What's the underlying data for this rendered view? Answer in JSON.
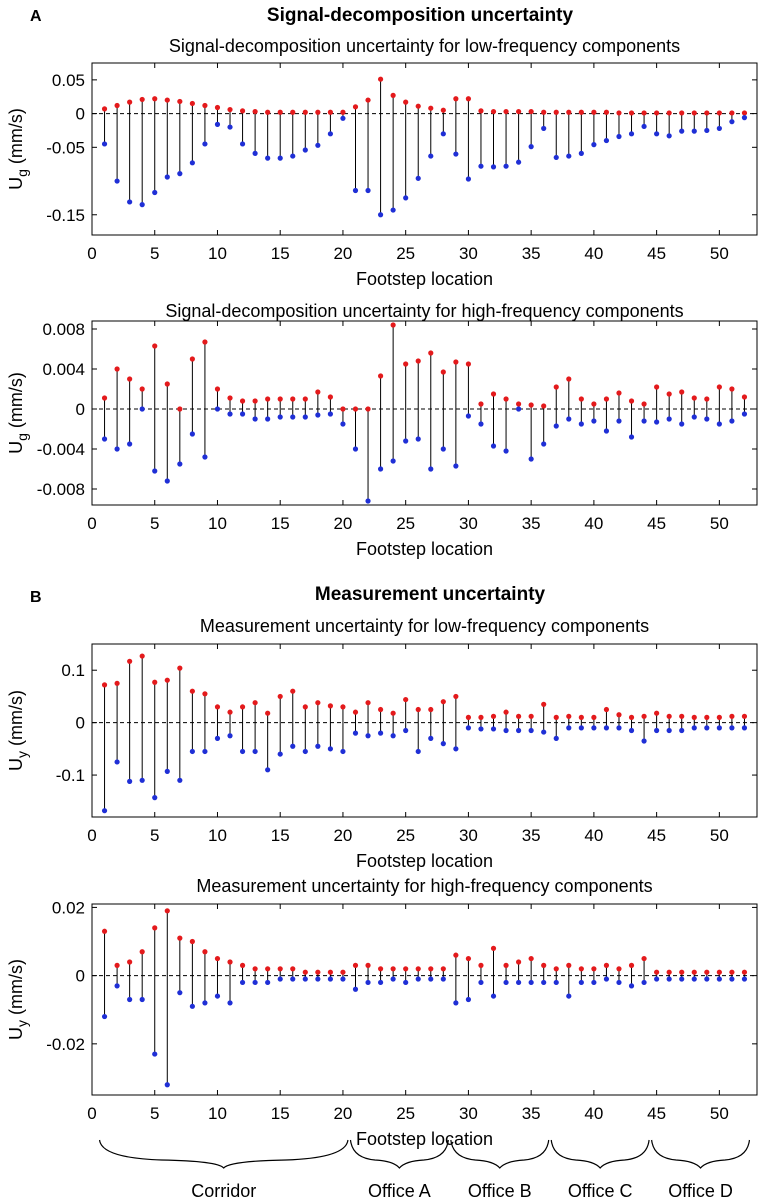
{
  "sections": {
    "A": {
      "letter": "A",
      "title": "Signal-decomposition uncertainty"
    },
    "B": {
      "letter": "B",
      "title": "Measurement uncertainty"
    }
  },
  "chart_data": [
    {
      "type": "stem",
      "title": "Signal-decomposition uncertainty for low-frequency components",
      "xlabel": "Footstep location",
      "ylabel": "U",
      "ylabel_sub": "g",
      "ylabel_unit": " (mm/s)",
      "xlim": [
        0,
        53
      ],
      "ylim": [
        -0.18,
        0.075
      ],
      "xticks": [
        0,
        5,
        10,
        15,
        20,
        25,
        30,
        35,
        40,
        45,
        50
      ],
      "yticks": [
        0.05,
        0,
        -0.05,
        -0.15
      ],
      "ytick_labels": [
        "0.05",
        "0",
        "-0.05",
        "-0.15"
      ],
      "x": [
        1,
        2,
        3,
        4,
        5,
        6,
        7,
        8,
        9,
        10,
        11,
        12,
        13,
        14,
        15,
        16,
        17,
        18,
        19,
        20,
        21,
        22,
        23,
        24,
        25,
        26,
        27,
        28,
        29,
        30,
        31,
        32,
        33,
        34,
        35,
        36,
        37,
        38,
        39,
        40,
        41,
        42,
        43,
        44,
        45,
        46,
        47,
        48,
        49,
        50,
        51,
        52
      ],
      "upper": [
        0.007,
        0.012,
        0.017,
        0.021,
        0.022,
        0.02,
        0.018,
        0.015,
        0.012,
        0.009,
        0.006,
        0.004,
        0.003,
        0.002,
        0.002,
        0.002,
        0.002,
        0.002,
        0.002,
        0.002,
        0.01,
        0.02,
        0.051,
        0.027,
        0.017,
        0.011,
        0.008,
        0.005,
        0.022,
        0.022,
        0.004,
        0.003,
        0.003,
        0.003,
        0.003,
        0.002,
        0.002,
        0.002,
        0.002,
        0.002,
        0.002,
        0.001,
        0.001,
        0.001,
        0.001,
        0.001,
        0.001,
        0.001,
        0.001,
        0.001,
        0.001,
        0.001
      ],
      "lower": [
        -0.045,
        -0.1,
        -0.131,
        -0.135,
        -0.117,
        -0.094,
        -0.089,
        -0.073,
        -0.045,
        -0.016,
        -0.02,
        -0.045,
        -0.059,
        -0.066,
        -0.066,
        -0.063,
        -0.054,
        -0.047,
        -0.03,
        -0.007,
        -0.114,
        -0.114,
        -0.15,
        -0.143,
        -0.125,
        -0.096,
        -0.063,
        -0.03,
        -0.06,
        -0.097,
        -0.078,
        -0.079,
        -0.078,
        -0.072,
        -0.049,
        -0.022,
        -0.065,
        -0.063,
        -0.059,
        -0.046,
        -0.04,
        -0.034,
        -0.03,
        -0.019,
        -0.03,
        -0.033,
        -0.026,
        -0.026,
        -0.025,
        -0.022,
        -0.012,
        -0.006
      ],
      "color_upper": "#e41a1c",
      "color_lower": "#1f2fd6"
    },
    {
      "type": "stem",
      "title": "Signal-decomposition uncertainty for high-frequency components",
      "xlabel": "Footstep location",
      "ylabel": "U",
      "ylabel_sub": "g",
      "ylabel_unit": " (mm/s)",
      "xlim": [
        0,
        53
      ],
      "ylim": [
        -0.0096,
        0.0088
      ],
      "xticks": [
        0,
        5,
        10,
        15,
        20,
        25,
        30,
        35,
        40,
        45,
        50
      ],
      "yticks": [
        0.008,
        0.004,
        0,
        -0.004,
        -0.008
      ],
      "ytick_labels": [
        "0.008",
        "0.004",
        "0",
        "-0.004",
        "-0.008"
      ],
      "x": [
        1,
        2,
        3,
        4,
        5,
        6,
        7,
        8,
        9,
        10,
        11,
        12,
        13,
        14,
        15,
        16,
        17,
        18,
        19,
        20,
        21,
        22,
        23,
        24,
        25,
        26,
        27,
        28,
        29,
        30,
        31,
        32,
        33,
        34,
        35,
        36,
        37,
        38,
        39,
        40,
        41,
        42,
        43,
        44,
        45,
        46,
        47,
        48,
        49,
        50,
        51,
        52
      ],
      "upper": [
        0.0011,
        0.004,
        0.003,
        0.002,
        0.0063,
        0.0025,
        0.0,
        0.005,
        0.0067,
        0.002,
        0.0011,
        0.0008,
        0.0008,
        0.001,
        0.001,
        0.001,
        0.001,
        0.0017,
        0.0012,
        0.0,
        0.0,
        0.0,
        0.0033,
        0.0084,
        0.0045,
        0.0048,
        0.0056,
        0.0037,
        0.0047,
        0.0045,
        0.0005,
        0.0015,
        0.001,
        0.0005,
        0.0004,
        0.0003,
        0.0022,
        0.003,
        0.001,
        0.0005,
        0.001,
        0.0016,
        0.0008,
        0.0005,
        0.0022,
        0.0015,
        0.0017,
        0.0011,
        0.001,
        0.0022,
        0.002,
        0.0012
      ],
      "lower": [
        -0.003,
        -0.004,
        -0.0035,
        0.0,
        -0.0062,
        -0.0072,
        -0.0055,
        -0.0025,
        -0.0048,
        0.0,
        -0.0005,
        -0.0005,
        -0.001,
        -0.001,
        -0.0008,
        -0.0008,
        -0.0008,
        -0.0006,
        -0.0005,
        -0.0015,
        -0.004,
        -0.0092,
        -0.006,
        -0.0052,
        -0.0032,
        -0.003,
        -0.006,
        -0.004,
        -0.0057,
        -0.0007,
        -0.0015,
        -0.0037,
        -0.0042,
        0.0,
        -0.005,
        -0.0035,
        -0.0017,
        -0.001,
        -0.0015,
        -0.0012,
        -0.0022,
        -0.0012,
        -0.0028,
        -0.0012,
        -0.0013,
        -0.001,
        -0.0015,
        -0.0008,
        -0.001,
        -0.0015,
        -0.0012,
        -0.0005
      ],
      "color_upper": "#e41a1c",
      "color_lower": "#1f2fd6"
    },
    {
      "type": "stem",
      "title": "Measurement uncertainty for low-frequency components",
      "xlabel": "Footstep location",
      "ylabel": "U",
      "ylabel_sub": "y",
      "ylabel_unit": " (mm/s)",
      "xlim": [
        0,
        53
      ],
      "ylim": [
        -0.18,
        0.15
      ],
      "xticks": [
        0,
        5,
        10,
        15,
        20,
        25,
        30,
        35,
        40,
        45,
        50
      ],
      "yticks": [
        0.1,
        0,
        -0.1
      ],
      "ytick_labels": [
        "0.1",
        "0",
        "-0.1"
      ],
      "x": [
        1,
        2,
        3,
        4,
        5,
        6,
        7,
        8,
        9,
        10,
        11,
        12,
        13,
        14,
        15,
        16,
        17,
        18,
        19,
        20,
        21,
        22,
        23,
        24,
        25,
        26,
        27,
        28,
        29,
        30,
        31,
        32,
        33,
        34,
        35,
        36,
        37,
        38,
        39,
        40,
        41,
        42,
        43,
        44,
        45,
        46,
        47,
        48,
        49,
        50,
        51,
        52
      ],
      "upper": [
        0.072,
        0.075,
        0.117,
        0.127,
        0.077,
        0.081,
        0.104,
        0.06,
        0.055,
        0.03,
        0.02,
        0.03,
        0.038,
        0.018,
        0.05,
        0.06,
        0.03,
        0.038,
        0.032,
        0.03,
        0.02,
        0.038,
        0.025,
        0.018,
        0.044,
        0.025,
        0.025,
        0.04,
        0.05,
        0.01,
        0.01,
        0.012,
        0.02,
        0.012,
        0.012,
        0.035,
        0.01,
        0.012,
        0.01,
        0.01,
        0.025,
        0.015,
        0.01,
        0.012,
        0.018,
        0.012,
        0.012,
        0.01,
        0.01,
        0.01,
        0.012,
        0.012
      ],
      "lower": [
        -0.168,
        -0.075,
        -0.112,
        -0.11,
        -0.143,
        -0.093,
        -0.11,
        -0.055,
        -0.055,
        -0.03,
        -0.025,
        -0.055,
        -0.055,
        -0.09,
        -0.06,
        -0.045,
        -0.055,
        -0.045,
        -0.05,
        -0.055,
        -0.02,
        -0.025,
        -0.02,
        -0.025,
        -0.015,
        -0.055,
        -0.03,
        -0.04,
        -0.05,
        -0.01,
        -0.012,
        -0.012,
        -0.015,
        -0.015,
        -0.015,
        -0.018,
        -0.03,
        -0.01,
        -0.01,
        -0.01,
        -0.01,
        -0.01,
        -0.015,
        -0.035,
        -0.015,
        -0.015,
        -0.015,
        -0.01,
        -0.01,
        -0.01,
        -0.01,
        -0.01
      ],
      "color_upper": "#e41a1c",
      "color_lower": "#1f2fd6"
    },
    {
      "type": "stem",
      "title": "Measurement uncertainty for high-frequency components",
      "xlabel": "Footstep location",
      "ylabel": "U",
      "ylabel_sub": "y",
      "ylabel_unit": " (mm/s)",
      "xlim": [
        0,
        53
      ],
      "ylim": [
        -0.035,
        0.021
      ],
      "xticks": [
        0,
        5,
        10,
        15,
        20,
        25,
        30,
        35,
        40,
        45,
        50
      ],
      "yticks": [
        0.02,
        0,
        -0.02
      ],
      "ytick_labels": [
        "0.02",
        "0",
        "-0.02"
      ],
      "x": [
        1,
        2,
        3,
        4,
        5,
        6,
        7,
        8,
        9,
        10,
        11,
        12,
        13,
        14,
        15,
        16,
        17,
        18,
        19,
        20,
        21,
        22,
        23,
        24,
        25,
        26,
        27,
        28,
        29,
        30,
        31,
        32,
        33,
        34,
        35,
        36,
        37,
        38,
        39,
        40,
        41,
        42,
        43,
        44,
        45,
        46,
        47,
        48,
        49,
        50,
        51,
        52
      ],
      "upper": [
        0.013,
        0.003,
        0.004,
        0.007,
        0.014,
        0.019,
        0.011,
        0.01,
        0.007,
        0.005,
        0.004,
        0.003,
        0.002,
        0.002,
        0.002,
        0.002,
        0.001,
        0.001,
        0.001,
        0.001,
        0.003,
        0.003,
        0.002,
        0.002,
        0.002,
        0.002,
        0.002,
        0.002,
        0.006,
        0.005,
        0.003,
        0.008,
        0.003,
        0.004,
        0.005,
        0.003,
        0.002,
        0.003,
        0.002,
        0.002,
        0.003,
        0.002,
        0.003,
        0.005,
        0.001,
        0.001,
        0.001,
        0.001,
        0.001,
        0.001,
        0.001,
        0.001
      ],
      "lower": [
        -0.012,
        -0.003,
        -0.007,
        -0.007,
        -0.023,
        -0.032,
        -0.005,
        -0.009,
        -0.008,
        -0.006,
        -0.008,
        -0.002,
        -0.002,
        -0.002,
        -0.001,
        -0.001,
        -0.001,
        -0.001,
        -0.001,
        -0.001,
        -0.004,
        -0.002,
        -0.002,
        -0.001,
        -0.002,
        -0.001,
        -0.001,
        -0.001,
        -0.008,
        -0.007,
        -0.002,
        -0.006,
        -0.002,
        -0.002,
        -0.002,
        -0.002,
        -0.002,
        -0.006,
        -0.002,
        -0.002,
        -0.001,
        -0.002,
        -0.003,
        -0.002,
        -0.001,
        -0.001,
        -0.001,
        -0.001,
        -0.001,
        -0.001,
        -0.001,
        -0.001
      ],
      "color_upper": "#e41a1c",
      "color_lower": "#1f2fd6"
    }
  ],
  "regions": [
    {
      "label": "Corridor",
      "from": 1,
      "to": 20
    },
    {
      "label": "Office A",
      "from": 21,
      "to": 28
    },
    {
      "label": "Office B",
      "from": 29,
      "to": 36
    },
    {
      "label": "Office C",
      "from": 37,
      "to": 44
    },
    {
      "label": "Office D",
      "from": 45,
      "to": 52
    }
  ]
}
